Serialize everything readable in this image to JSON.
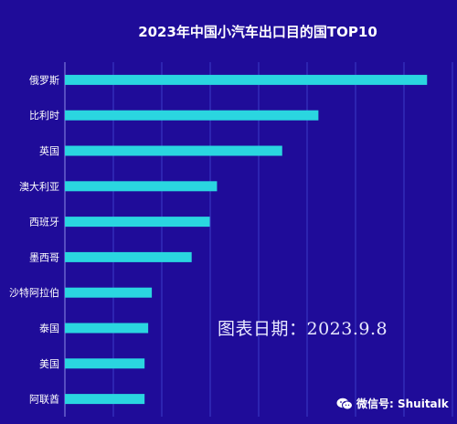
{
  "chart_data": {
    "type": "bar",
    "orientation": "horizontal",
    "title": "2023年中国小汽车出口目的国TOP10",
    "categories": [
      "俄罗斯",
      "比利时",
      "英国",
      "澳大利亚",
      "西班牙",
      "墨西哥",
      "沙特阿拉伯",
      "泰国",
      "美国",
      "阿联酋"
    ],
    "values": [
      100,
      70,
      60,
      42,
      40,
      35,
      24,
      23,
      22,
      22
    ],
    "xlim": [
      0,
      107
    ],
    "grid": true,
    "legend": "none",
    "colors": {
      "background": "#1f0c99",
      "bar": "#2ad6e0",
      "grid": "#3b3bc8",
      "text": "#ffffff"
    }
  },
  "annotations": {
    "date_note": "图表日期：2023.9.8",
    "watermark": "微信号: Shuitalk",
    "watermark_icon": "wechat-icon"
  }
}
